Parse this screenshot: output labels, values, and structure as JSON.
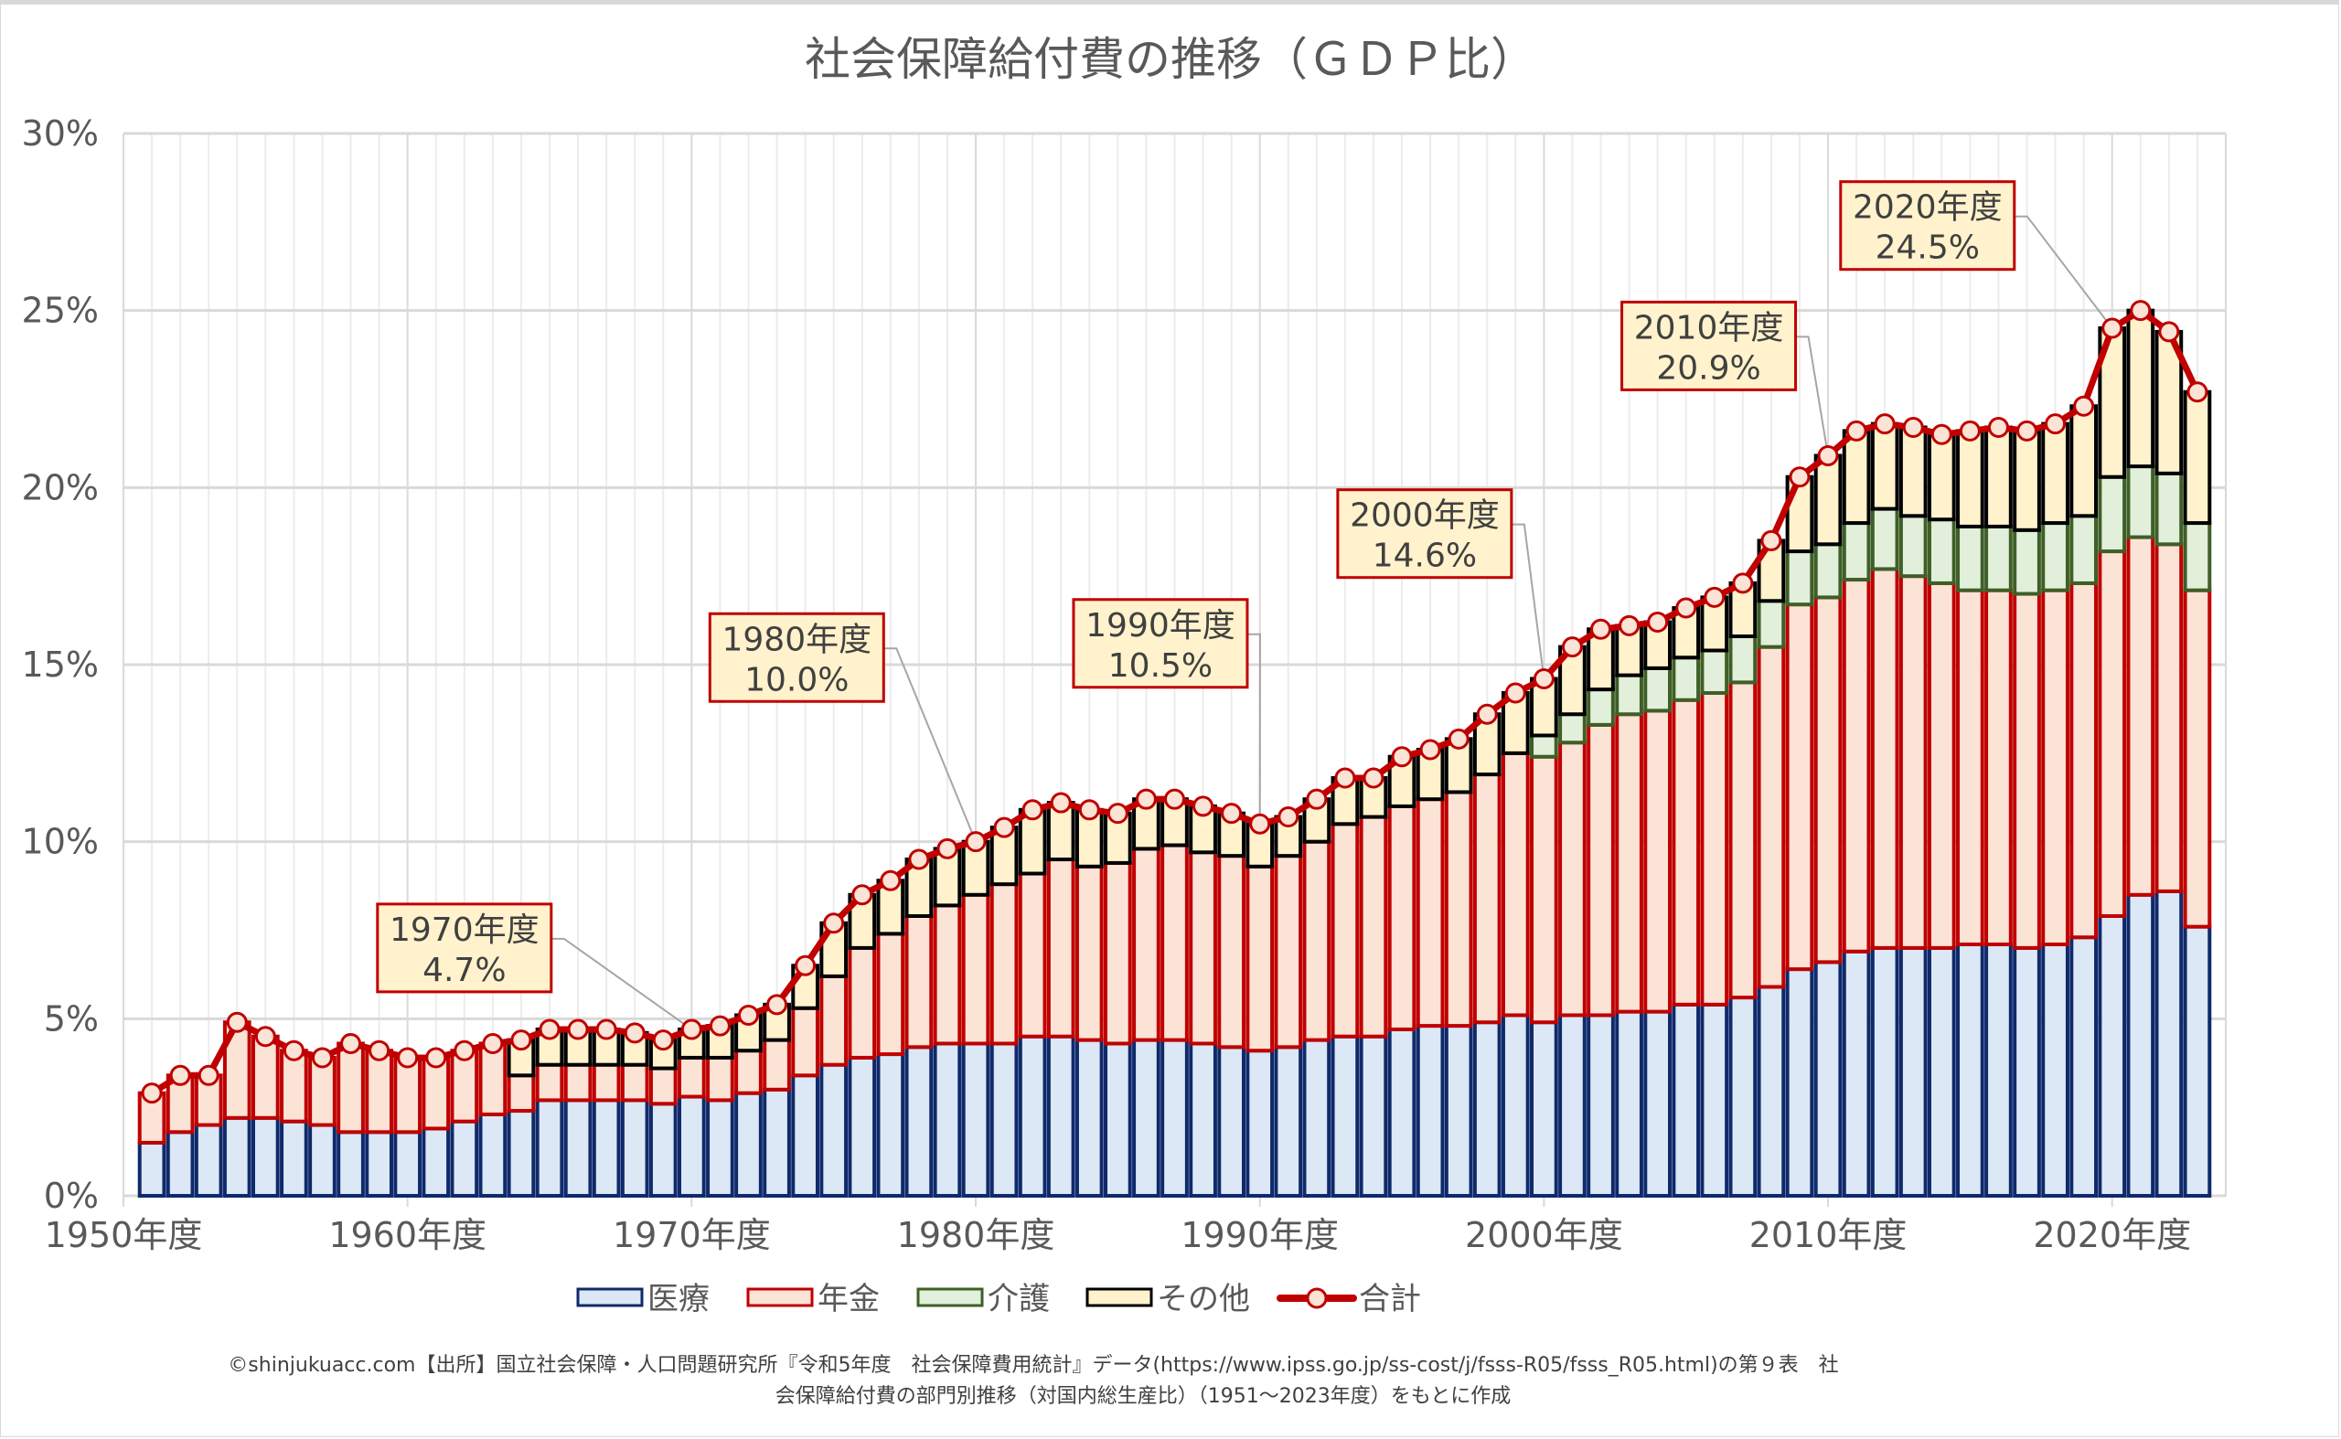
{
  "chart_data": {
    "type": "bar",
    "subtype": "stacked-bar-with-line",
    "title": "社会保障給付費の推移（ＧＤＰ比）",
    "xlabel": "",
    "ylabel": "",
    "ylim": [
      0,
      30
    ],
    "yticks": [
      "0%",
      "5%",
      "10%",
      "15%",
      "20%",
      "25%",
      "30%"
    ],
    "ytick_values": [
      0,
      5,
      10,
      15,
      20,
      25,
      30
    ],
    "xtick_labels": [
      "1950年度",
      "1960年度",
      "1970年度",
      "1980年度",
      "1990年度",
      "2000年度",
      "2010年度",
      "2020年度"
    ],
    "xtick_values": [
      1950,
      1960,
      1970,
      1980,
      1990,
      2000,
      2010,
      2020
    ],
    "xlim": [
      1950,
      2024
    ],
    "grid": true,
    "legend_position": "bottom",
    "categories": [
      1951,
      1952,
      1953,
      1954,
      1955,
      1956,
      1957,
      1958,
      1959,
      1960,
      1961,
      1962,
      1963,
      1964,
      1965,
      1966,
      1967,
      1968,
      1969,
      1970,
      1971,
      1972,
      1973,
      1974,
      1975,
      1976,
      1977,
      1978,
      1979,
      1980,
      1981,
      1982,
      1983,
      1984,
      1985,
      1986,
      1987,
      1988,
      1989,
      1990,
      1991,
      1992,
      1993,
      1994,
      1995,
      1996,
      1997,
      1998,
      1999,
      2000,
      2001,
      2002,
      2003,
      2004,
      2005,
      2006,
      2007,
      2008,
      2009,
      2010,
      2011,
      2012,
      2013,
      2014,
      2015,
      2016,
      2017,
      2018,
      2019,
      2020,
      2021,
      2022,
      2023
    ],
    "series": [
      {
        "name": "医療",
        "kind": "bar",
        "fill": "#dce8f5",
        "stroke": "#0f2a6b",
        "values": [
          1.5,
          1.8,
          2.0,
          2.2,
          2.2,
          2.1,
          2.0,
          1.8,
          1.8,
          1.8,
          1.9,
          2.1,
          2.3,
          2.4,
          2.7,
          2.7,
          2.7,
          2.7,
          2.6,
          2.8,
          2.7,
          2.9,
          3.0,
          3.4,
          3.7,
          3.9,
          4.0,
          4.2,
          4.3,
          4.3,
          4.3,
          4.5,
          4.5,
          4.4,
          4.3,
          4.4,
          4.4,
          4.3,
          4.2,
          4.1,
          4.2,
          4.4,
          4.5,
          4.5,
          4.7,
          4.8,
          4.8,
          4.9,
          5.1,
          4.9,
          5.1,
          5.1,
          5.2,
          5.2,
          5.4,
          5.4,
          5.6,
          5.9,
          6.4,
          6.6,
          6.9,
          7.0,
          7.0,
          7.0,
          7.1,
          7.1,
          7.0,
          7.1,
          7.3,
          7.9,
          8.5,
          8.6,
          7.6
        ]
      },
      {
        "name": "年金",
        "kind": "bar",
        "fill": "#fbe3d6",
        "stroke": "#c00000",
        "values": [
          1.4,
          1.6,
          1.4,
          2.7,
          2.3,
          2.0,
          1.9,
          2.5,
          2.3,
          2.1,
          2.0,
          2.0,
          2.0,
          1.0,
          1.0,
          1.0,
          1.0,
          1.0,
          1.0,
          1.1,
          1.2,
          1.2,
          1.4,
          1.9,
          2.5,
          3.1,
          3.4,
          3.7,
          3.9,
          4.2,
          4.5,
          4.6,
          5.0,
          4.9,
          5.1,
          5.4,
          5.5,
          5.4,
          5.4,
          5.2,
          5.4,
          5.6,
          6.0,
          6.2,
          6.3,
          6.4,
          6.6,
          7.0,
          7.4,
          7.5,
          7.7,
          8.2,
          8.4,
          8.5,
          8.6,
          8.8,
          8.9,
          9.6,
          10.3,
          10.3,
          10.5,
          10.7,
          10.5,
          10.3,
          10.0,
          10.0,
          10.0,
          10.0,
          10.0,
          10.3,
          10.1,
          9.8,
          9.5
        ]
      },
      {
        "name": "介護",
        "kind": "bar",
        "fill": "#e2efda",
        "stroke": "#3e5f27",
        "values": [
          0,
          0,
          0,
          0,
          0,
          0,
          0,
          0,
          0,
          0,
          0,
          0,
          0,
          0,
          0,
          0,
          0,
          0,
          0,
          0,
          0,
          0,
          0,
          0,
          0,
          0,
          0,
          0,
          0,
          0,
          0,
          0,
          0,
          0,
          0,
          0,
          0,
          0,
          0,
          0,
          0,
          0,
          0,
          0,
          0,
          0,
          0,
          0,
          0,
          0.6,
          0.8,
          1.0,
          1.1,
          1.2,
          1.2,
          1.2,
          1.3,
          1.3,
          1.5,
          1.5,
          1.6,
          1.7,
          1.7,
          1.8,
          1.8,
          1.8,
          1.8,
          1.9,
          1.9,
          2.1,
          2.0,
          2.0,
          1.9
        ]
      },
      {
        "name": "その他",
        "kind": "bar",
        "fill": "#fff2cc",
        "stroke": "#000000",
        "values": [
          0,
          0,
          0,
          0,
          0,
          0,
          0,
          0,
          0,
          0,
          0,
          0,
          0,
          1.0,
          1.0,
          1.0,
          1.0,
          0.9,
          0.8,
          0.8,
          0.9,
          1.0,
          1.0,
          1.2,
          1.5,
          1.5,
          1.5,
          1.6,
          1.6,
          1.5,
          1.6,
          1.8,
          1.6,
          1.6,
          1.4,
          1.4,
          1.3,
          1.3,
          1.2,
          1.2,
          1.1,
          1.2,
          1.3,
          1.1,
          1.4,
          1.4,
          1.5,
          1.7,
          1.7,
          1.6,
          1.9,
          1.7,
          1.4,
          1.3,
          1.4,
          1.5,
          1.5,
          1.7,
          2.1,
          2.5,
          2.6,
          2.4,
          2.5,
          2.4,
          2.7,
          2.8,
          2.8,
          2.8,
          3.1,
          4.2,
          4.4,
          4.0,
          3.7
        ]
      },
      {
        "name": "合計",
        "kind": "line",
        "stroke": "#c00000",
        "marker_fill": "#fbe3d6",
        "values": [
          2.9,
          3.4,
          3.4,
          4.9,
          4.5,
          4.1,
          3.9,
          4.3,
          4.1,
          3.9,
          3.9,
          4.1,
          4.3,
          4.4,
          4.7,
          4.7,
          4.7,
          4.6,
          4.4,
          4.7,
          4.8,
          5.1,
          5.4,
          6.5,
          7.7,
          8.5,
          8.9,
          9.5,
          9.8,
          10.0,
          10.4,
          10.9,
          11.1,
          10.9,
          10.8,
          11.2,
          11.2,
          11.0,
          10.8,
          10.5,
          10.7,
          11.2,
          11.8,
          11.8,
          12.4,
          12.6,
          12.9,
          13.6,
          14.2,
          14.6,
          15.5,
          16.0,
          16.1,
          16.2,
          16.6,
          16.9,
          17.3,
          18.5,
          20.3,
          20.9,
          21.6,
          21.8,
          21.7,
          21.5,
          21.6,
          21.7,
          21.6,
          21.8,
          22.3,
          24.5,
          25.0,
          24.4,
          22.7
        ]
      }
    ],
    "annotations": [
      {
        "year": 1970,
        "line1": "1970年度",
        "line2": "4.7%",
        "box_year": 1962.0,
        "box_value": 7.0
      },
      {
        "year": 1980,
        "line1": "1980年度",
        "line2": "10.0%",
        "box_year": 1973.7,
        "box_value": 15.2
      },
      {
        "year": 1990,
        "line1": "1990年度",
        "line2": "10.5%",
        "box_year": 1986.5,
        "box_value": 15.6
      },
      {
        "year": 2000,
        "line1": "2000年度",
        "line2": "14.6%",
        "box_year": 1995.8,
        "box_value": 18.7
      },
      {
        "year": 2010,
        "line1": "2010年度",
        "line2": "20.9%",
        "box_year": 2005.8,
        "box_value": 24.0
      },
      {
        "year": 2020,
        "line1": "2020年度",
        "line2": "24.5%",
        "box_year": 2013.5,
        "box_value": 27.4
      }
    ]
  },
  "legend": [
    {
      "label": "医療",
      "kind": "bar"
    },
    {
      "label": "年金",
      "kind": "bar"
    },
    {
      "label": "介護",
      "kind": "bar"
    },
    {
      "label": "その他",
      "kind": "bar"
    },
    {
      "label": "合計",
      "kind": "line"
    }
  ],
  "footer": {
    "line1": "©shinjukuacc.com【出所】国立社会保障・人口問題研究所『令和5年度　社会保障費用統計』データ(https://www.ipss.go.jp/ss-cost/j/fsss-R05/fsss_R05.html)の第９表　社",
    "line2": "会保障給付費の部門別推移（対国内総生産比）（1951～2023年度）をもとに作成"
  }
}
